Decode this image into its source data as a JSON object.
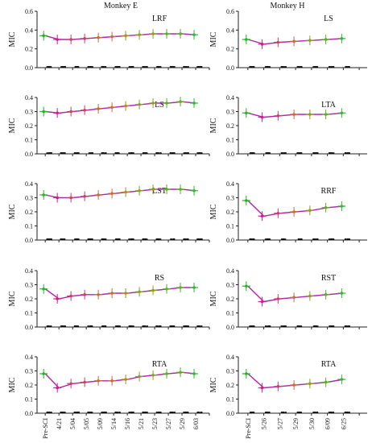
{
  "figure": {
    "column_titles": [
      "Monkey E",
      "Monkey H"
    ],
    "ylabel": "MIC",
    "colors": {
      "mean_line": "#b023b0",
      "pre_marker": "#22b522",
      "marker_ramp": [
        "#d41a8e",
        "#c8406a",
        "#c86a3c",
        "#b48a24",
        "#8ca01e",
        "#5cae28",
        "#32b836"
      ],
      "scatter": "#111111",
      "axis": "#222222"
    }
  },
  "chart_data": [
    {
      "type": "line",
      "title": "LRF",
      "col": 0,
      "row": 0,
      "categories": [
        "Pre-SCI",
        "4/21",
        "5/04",
        "5/05",
        "5/09",
        "5/14",
        "5/16",
        "5/21",
        "5/23",
        "5/27",
        "5/29",
        "6/03"
      ],
      "values": [
        0.34,
        0.3,
        0.3,
        0.31,
        0.32,
        0.33,
        0.34,
        0.35,
        0.36,
        0.36,
        0.36,
        0.35
      ],
      "ylim": [
        0,
        0.6
      ],
      "yticks": [
        "0.0",
        "0.2",
        "0.4",
        "0.6"
      ]
    },
    {
      "type": "line",
      "title": "LS",
      "col": 1,
      "row": 0,
      "categories": [
        "Pre-SCI",
        "5/26",
        "5/27",
        "5/29",
        "5/30",
        "6/09",
        "6/25"
      ],
      "values": [
        0.3,
        0.25,
        0.27,
        0.28,
        0.29,
        0.3,
        0.31
      ],
      "ylim": [
        0,
        0.6
      ],
      "yticks": [
        "0.0",
        "0.2",
        "0.4",
        "0.6"
      ]
    },
    {
      "type": "line",
      "title": "LS",
      "col": 0,
      "row": 1,
      "categories": [
        "Pre-SCI",
        "4/21",
        "5/04",
        "5/05",
        "5/09",
        "5/14",
        "5/16",
        "5/21",
        "5/23",
        "5/27",
        "5/29",
        "6/03"
      ],
      "values": [
        0.3,
        0.29,
        0.3,
        0.31,
        0.32,
        0.33,
        0.34,
        0.35,
        0.36,
        0.36,
        0.37,
        0.36
      ],
      "ylim": [
        0,
        0.4
      ],
      "yticks": [
        "0.0",
        "0.1",
        "0.2",
        "0.3",
        "0.4"
      ]
    },
    {
      "type": "line",
      "title": "LTA",
      "col": 1,
      "row": 1,
      "categories": [
        "Pre-SCI",
        "5/26",
        "5/27",
        "5/29",
        "5/30",
        "6/09",
        "6/25"
      ],
      "values": [
        0.29,
        0.26,
        0.27,
        0.28,
        0.28,
        0.28,
        0.29
      ],
      "ylim": [
        0,
        0.4
      ],
      "yticks": [
        "0.0",
        "0.1",
        "0.2",
        "0.3",
        "0.4"
      ]
    },
    {
      "type": "line",
      "title": "LST",
      "col": 0,
      "row": 2,
      "categories": [
        "Pre-SCI",
        "4/21",
        "5/04",
        "5/05",
        "5/09",
        "5/14",
        "5/16",
        "5/21",
        "5/23",
        "5/27",
        "5/29",
        "6/03"
      ],
      "values": [
        0.32,
        0.3,
        0.3,
        0.31,
        0.32,
        0.33,
        0.34,
        0.35,
        0.36,
        0.36,
        0.36,
        0.35
      ],
      "ylim": [
        0,
        0.4
      ],
      "yticks": [
        "0.0",
        "0.1",
        "0.2",
        "0.3",
        "0.4"
      ]
    },
    {
      "type": "line",
      "title": "RRF",
      "col": 1,
      "row": 2,
      "categories": [
        "Pre-SCI",
        "5/26",
        "5/27",
        "5/29",
        "5/30",
        "6/09",
        "6/25"
      ],
      "values": [
        0.28,
        0.17,
        0.19,
        0.2,
        0.21,
        0.23,
        0.24
      ],
      "ylim": [
        0,
        0.4
      ],
      "yticks": [
        "0.0",
        "0.1",
        "0.2",
        "0.3",
        "0.4"
      ]
    },
    {
      "type": "line",
      "title": "RS",
      "col": 0,
      "row": 3,
      "categories": [
        "Pre-SCI",
        "4/21",
        "5/04",
        "5/05",
        "5/09",
        "5/14",
        "5/16",
        "5/21",
        "5/23",
        "5/27",
        "5/29",
        "6/03"
      ],
      "values": [
        0.27,
        0.2,
        0.22,
        0.23,
        0.23,
        0.24,
        0.24,
        0.25,
        0.26,
        0.27,
        0.28,
        0.28
      ],
      "ylim": [
        0,
        0.4
      ],
      "yticks": [
        "0.0",
        "0.1",
        "0.2",
        "0.3",
        "0.4"
      ]
    },
    {
      "type": "line",
      "title": "RST",
      "col": 1,
      "row": 3,
      "categories": [
        "Pre-SCI",
        "5/26",
        "5/27",
        "5/29",
        "5/30",
        "6/09",
        "6/25"
      ],
      "values": [
        0.29,
        0.18,
        0.2,
        0.21,
        0.22,
        0.23,
        0.24
      ],
      "ylim": [
        0,
        0.4
      ],
      "yticks": [
        "0.0",
        "0.1",
        "0.2",
        "0.3",
        "0.4"
      ]
    },
    {
      "type": "line",
      "title": "RTA",
      "col": 0,
      "row": 4,
      "categories": [
        "Pre-SCI",
        "4/21",
        "5/04",
        "5/05",
        "5/09",
        "5/14",
        "5/16",
        "5/21",
        "5/23",
        "5/27",
        "5/29",
        "6/03"
      ],
      "values": [
        0.28,
        0.18,
        0.21,
        0.22,
        0.23,
        0.23,
        0.24,
        0.26,
        0.27,
        0.28,
        0.29,
        0.28
      ],
      "ylim": [
        0,
        0.4
      ],
      "yticks": [
        "0.0",
        "0.1",
        "0.2",
        "0.3",
        "0.4"
      ]
    },
    {
      "type": "line",
      "title": "RTA",
      "col": 1,
      "row": 4,
      "categories": [
        "Pre-SCI",
        "5/26",
        "5/27",
        "5/29",
        "5/30",
        "6/09",
        "6/25"
      ],
      "values": [
        0.28,
        0.18,
        0.19,
        0.2,
        0.21,
        0.22,
        0.24
      ],
      "ylim": [
        0,
        0.4
      ],
      "yticks": [
        "0.0",
        "0.1",
        "0.2",
        "0.3",
        "0.4"
      ]
    }
  ]
}
